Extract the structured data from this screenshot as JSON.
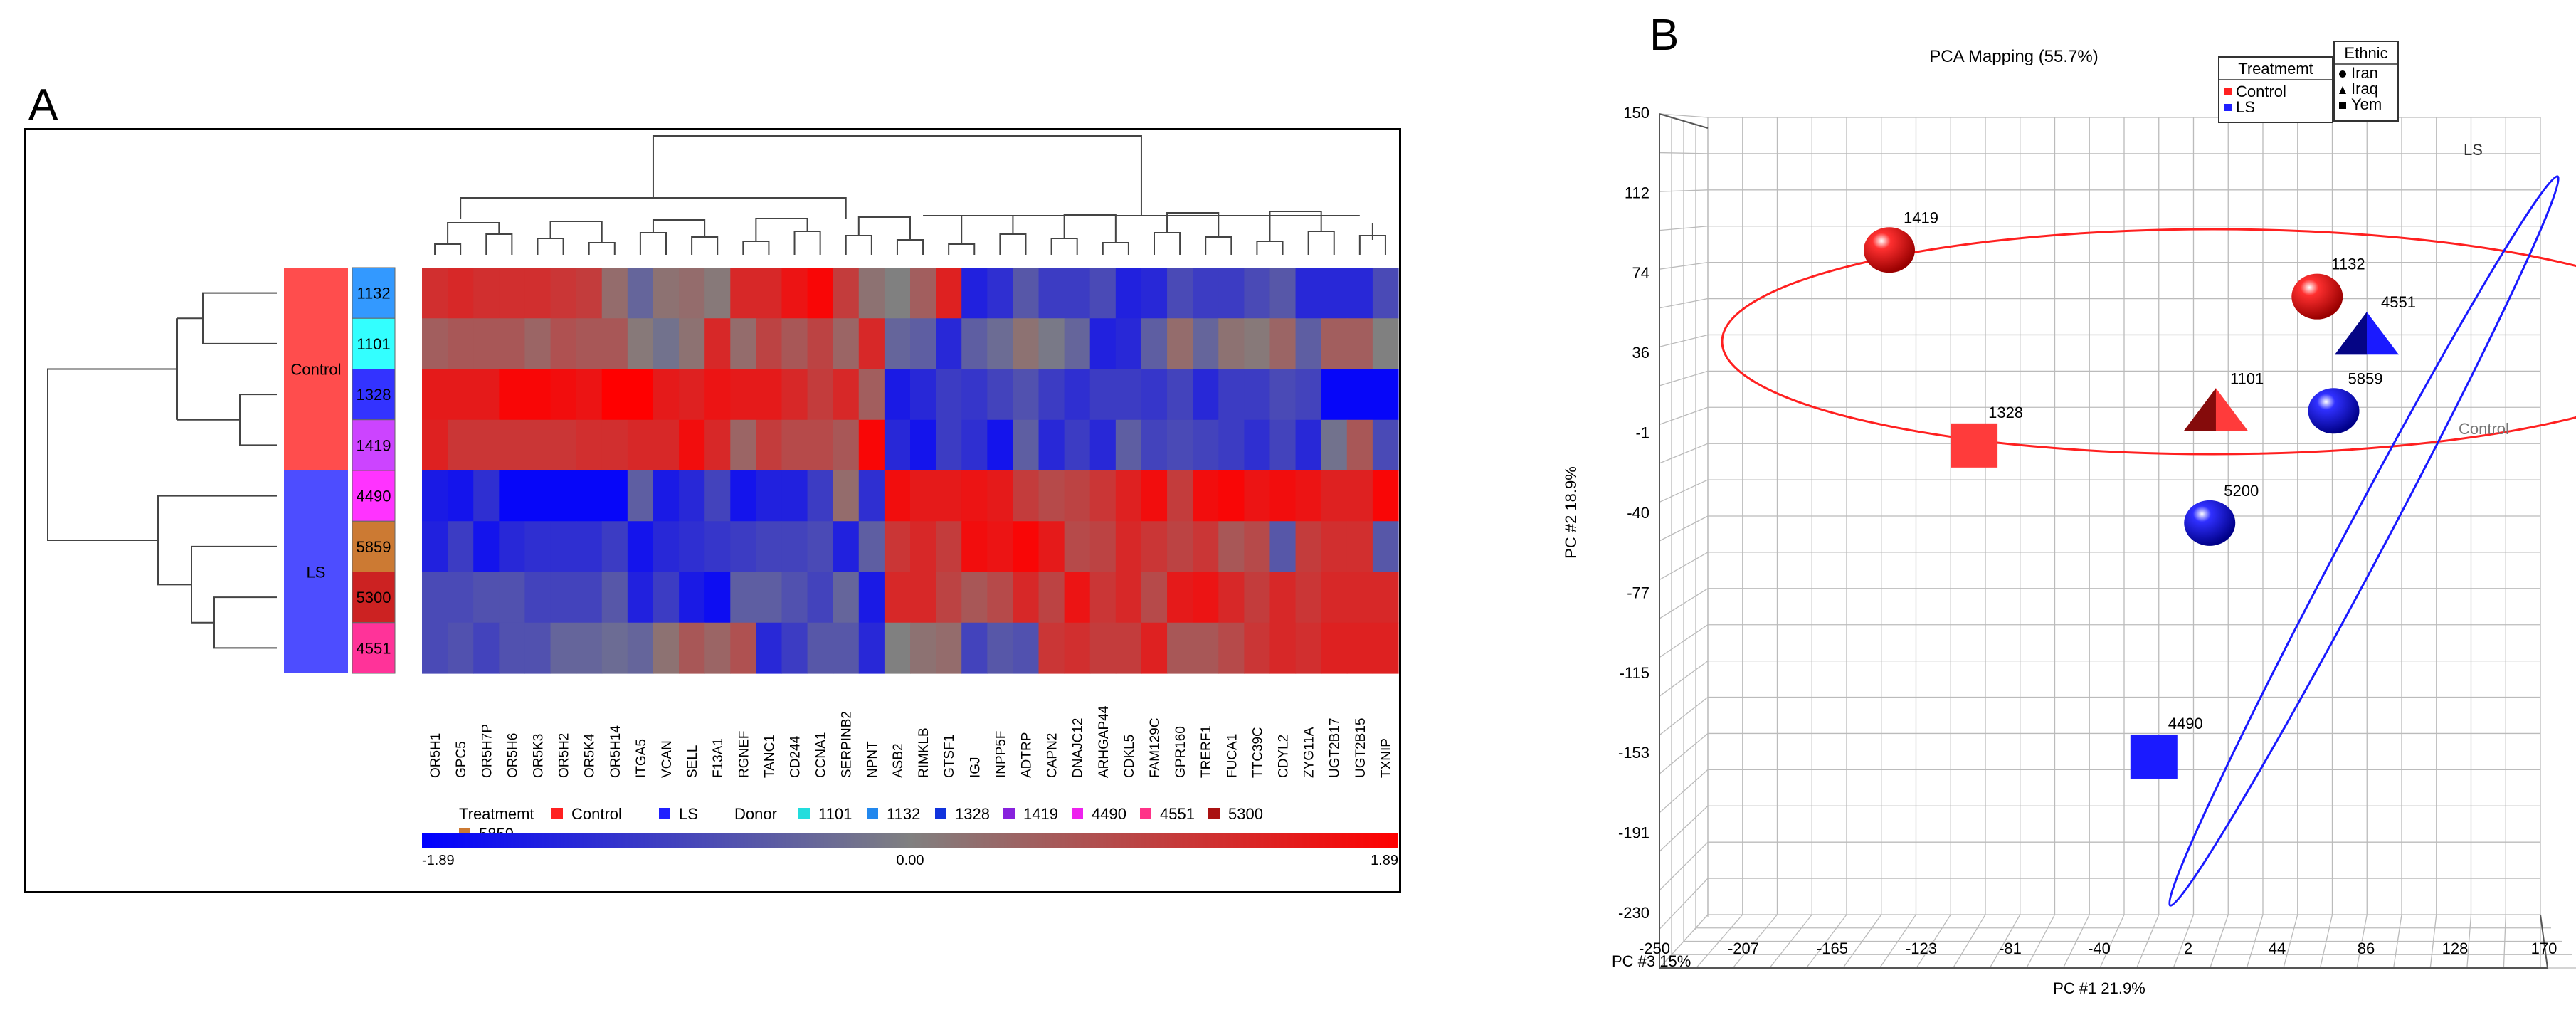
{
  "panelA": {
    "letter": "A",
    "groups": [
      {
        "label": "Control",
        "color": "#ff4d4d"
      },
      {
        "label": "LS",
        "color": "#4d4dff"
      }
    ],
    "donors": [
      {
        "label": "1132",
        "color": "#3399ff"
      },
      {
        "label": "1101",
        "color": "#33ffff"
      },
      {
        "label": "1328",
        "color": "#3333ff"
      },
      {
        "label": "1419",
        "color": "#cc44ff"
      },
      {
        "label": "4490",
        "color": "#ff33ff"
      },
      {
        "label": "5859",
        "color": "#cc7a33"
      },
      {
        "label": "5300",
        "color": "#cc2222"
      },
      {
        "label": "4551",
        "color": "#ff3399"
      }
    ],
    "legend": {
      "treatment_label": "Treatmemt",
      "treatment_items": [
        {
          "label": "Control",
          "color": "#ff2020"
        },
        {
          "label": "LS",
          "color": "#2020ff"
        }
      ],
      "donor_label": "Donor",
      "donor_items": [
        {
          "label": "1101",
          "color": "#22dddd"
        },
        {
          "label": "1132",
          "color": "#2288ee"
        },
        {
          "label": "1328",
          "color": "#1133dd"
        },
        {
          "label": "1419",
          "color": "#8822dd"
        },
        {
          "label": "4490",
          "color": "#ee22ee"
        },
        {
          "label": "4551",
          "color": "#ff3388"
        },
        {
          "label": "5300",
          "color": "#aa1111"
        },
        {
          "label": "5859",
          "color": "#cc7a33"
        }
      ]
    },
    "colorbar": {
      "min": "-1.89",
      "mid": "0.00",
      "max": "1.89",
      "low_color": "#0000ff",
      "mid_color": "#808080",
      "high_color": "#ff0000"
    }
  },
  "chart_data": [
    {
      "type": "heatmap",
      "title": "",
      "columns": [
        "OR5H1",
        "GPC5",
        "OR5H7P",
        "OR5H6",
        "OR5K3",
        "OR5H2",
        "OR5K4",
        "OR5H14",
        "ITGA5",
        "VCAN",
        "SELL",
        "F13A1",
        "RGNEF",
        "TANC1",
        "CD244",
        "CCNA1",
        "SERPINB2",
        "NPNT",
        "ASB2",
        "RIMKLB",
        "GTSF1",
        "IGJ",
        "INPP5F",
        "ADTRP",
        "CAPN2",
        "DNAJC12",
        "ARHGAP44",
        "CDKL5",
        "FAM129C",
        "GPR160",
        "TRERF1",
        "FUCA1",
        "TTC39C",
        "CDYL2",
        "ZYG11A",
        "UGT2B17",
        "UGT2B15",
        "TXNIP"
      ],
      "rows": [
        "1132",
        "1101",
        "1328",
        "1419",
        "4490",
        "5859",
        "5300",
        "4551"
      ],
      "row_groups": [
        "Control",
        "Control",
        "Control",
        "Control",
        "LS",
        "LS",
        "LS",
        "LS"
      ],
      "values": [
        [
          1.2,
          1.3,
          1.2,
          1.2,
          1.2,
          1.1,
          1.0,
          0.3,
          -0.4,
          0.2,
          0.3,
          0.1,
          1.3,
          1.3,
          1.6,
          1.8,
          1.0,
          0.2,
          0.0,
          0.5,
          1.4,
          -1.4,
          -1.2,
          -0.6,
          -1.0,
          -1.0,
          -0.8,
          -1.4,
          -1.3,
          -0.8,
          -1.0,
          -1.0,
          -0.8,
          -0.6,
          -1.3,
          -1.3,
          -1.3,
          -0.8
        ],
        [
          0.5,
          0.6,
          0.6,
          0.6,
          0.4,
          0.7,
          0.6,
          0.6,
          0.1,
          -0.2,
          0.2,
          1.3,
          0.3,
          0.9,
          0.6,
          0.9,
          0.4,
          1.3,
          -0.4,
          -0.5,
          -1.3,
          -0.5,
          -0.3,
          0.2,
          -0.1,
          -0.4,
          -1.4,
          -1.3,
          -0.5,
          0.3,
          -0.4,
          0.2,
          0.1,
          0.4,
          -0.5,
          0.5,
          0.5,
          0.0
        ],
        [
          1.5,
          1.5,
          1.5,
          1.8,
          1.8,
          1.7,
          1.6,
          1.9,
          1.9,
          1.5,
          1.4,
          1.6,
          1.5,
          1.5,
          1.3,
          1.0,
          1.3,
          0.5,
          -1.5,
          -1.3,
          -1.0,
          -1.1,
          -0.9,
          -0.7,
          -1.0,
          -1.2,
          -1.0,
          -1.0,
          -1.1,
          -0.9,
          -1.3,
          -1.0,
          -1.0,
          -0.8,
          -0.9,
          -1.8,
          -1.8,
          -1.8
        ],
        [
          1.4,
          1.1,
          1.1,
          1.1,
          1.1,
          1.1,
          1.2,
          1.2,
          1.3,
          1.3,
          1.7,
          1.3,
          0.4,
          1.0,
          0.8,
          0.8,
          0.6,
          1.8,
          -1.3,
          -1.6,
          -1.0,
          -1.2,
          -1.6,
          -0.5,
          -1.3,
          -1.0,
          -1.3,
          -0.5,
          -0.9,
          -0.8,
          -0.9,
          -1.0,
          -1.2,
          -0.9,
          -1.3,
          -0.2,
          0.6,
          -0.8
        ],
        [
          -1.5,
          -1.6,
          -1.2,
          -1.8,
          -1.8,
          -1.8,
          -1.8,
          -1.8,
          -0.5,
          -1.5,
          -1.3,
          -0.9,
          -1.6,
          -1.4,
          -1.4,
          -1.0,
          0.3,
          -1.2,
          1.7,
          1.5,
          1.5,
          1.6,
          1.5,
          1.0,
          0.8,
          0.9,
          1.1,
          1.4,
          1.7,
          1.0,
          1.7,
          1.8,
          1.6,
          1.7,
          1.6,
          1.4,
          1.4,
          1.8
        ],
        [
          -1.4,
          -1.0,
          -1.6,
          -1.3,
          -1.2,
          -1.2,
          -1.2,
          -1.0,
          -1.6,
          -1.3,
          -1.2,
          -1.1,
          -1.0,
          -0.9,
          -0.9,
          -0.8,
          -1.4,
          -0.5,
          1.1,
          1.3,
          1.0,
          1.7,
          1.6,
          1.8,
          1.5,
          0.8,
          0.9,
          1.3,
          1.1,
          0.9,
          1.1,
          0.6,
          0.8,
          -0.6,
          1.0,
          1.2,
          1.2,
          -0.6
        ],
        [
          -0.8,
          -0.8,
          -0.7,
          -0.7,
          -0.9,
          -0.9,
          -0.9,
          -0.6,
          -1.4,
          -1.0,
          -1.5,
          -1.7,
          -0.5,
          -0.5,
          -0.7,
          -0.9,
          -0.4,
          -1.5,
          1.3,
          1.3,
          0.9,
          0.6,
          0.8,
          1.3,
          0.9,
          1.6,
          1.1,
          1.3,
          0.8,
          1.5,
          1.6,
          1.3,
          1.0,
          1.3,
          1.1,
          1.3,
          1.3,
          1.3
        ],
        [
          -0.8,
          -0.7,
          -0.9,
          -0.7,
          -0.7,
          -0.4,
          -0.4,
          -0.3,
          -0.4,
          0.2,
          0.6,
          0.4,
          0.7,
          -1.3,
          -1.0,
          -0.6,
          -0.6,
          -1.3,
          0.0,
          0.2,
          0.3,
          -0.9,
          -0.6,
          -0.7,
          1.1,
          1.2,
          1.0,
          1.0,
          1.4,
          0.6,
          0.6,
          0.8,
          1.1,
          1.3,
          1.2,
          1.4,
          1.4,
          1.4
        ]
      ],
      "colorscale_range": [
        -1.89,
        1.89
      ]
    },
    {
      "type": "scatter",
      "panel_letter": "B",
      "title": "PCA Mapping (55.7%)",
      "xlabel": "PC #1 21.9%",
      "ylabel": "PC #2 18.9%",
      "zlabel": "PC #3  15%",
      "x_ticks": [
        "-250",
        "-207",
        "-165",
        "-123",
        "-81",
        "-40",
        "2",
        "44",
        "86",
        "128",
        "170"
      ],
      "y_ticks": [
        "150",
        "112",
        "74",
        "36",
        "-1",
        "-40",
        "-77",
        "-115",
        "-153",
        "-191",
        "-230"
      ],
      "xlim": [
        -250,
        170
      ],
      "ylim": [
        -230,
        150
      ],
      "grid": true,
      "legend_treatment": {
        "title": "Treatmemt",
        "items": [
          {
            "label": "Control",
            "color": "#ff2020"
          },
          {
            "label": "LS",
            "color": "#2020ff"
          }
        ]
      },
      "legend_ethnic": {
        "title": "Ethnic",
        "items": [
          {
            "label": "Iran",
            "marker": "circle"
          },
          {
            "label": "Iraq",
            "marker": "triangle"
          },
          {
            "label": "Yem",
            "marker": "square"
          }
        ]
      },
      "ellipse_labels": [
        "Control",
        "LS"
      ],
      "points": [
        {
          "label": "1419",
          "group": "Control",
          "ethnic": "Iran",
          "x": -145,
          "y": 84
        },
        {
          "label": "1132",
          "group": "Control",
          "ethnic": "Iran",
          "x": 62,
          "y": 62
        },
        {
          "label": "4551",
          "group": "LS",
          "ethnic": "Iraq",
          "x": 86,
          "y": 44
        },
        {
          "label": "1101",
          "group": "Control",
          "ethnic": "Iraq",
          "x": 13,
          "y": 8
        },
        {
          "label": "5859",
          "group": "LS",
          "ethnic": "Iran",
          "x": 70,
          "y": 8
        },
        {
          "label": "1328",
          "group": "Control",
          "ethnic": "Yem",
          "x": -104,
          "y": -8
        },
        {
          "label": "5200",
          "group": "LS",
          "ethnic": "Iran",
          "x": 10,
          "y": -45
        },
        {
          "label": "4490",
          "group": "LS",
          "ethnic": "Yem",
          "x": -17,
          "y": -155
        }
      ]
    }
  ]
}
